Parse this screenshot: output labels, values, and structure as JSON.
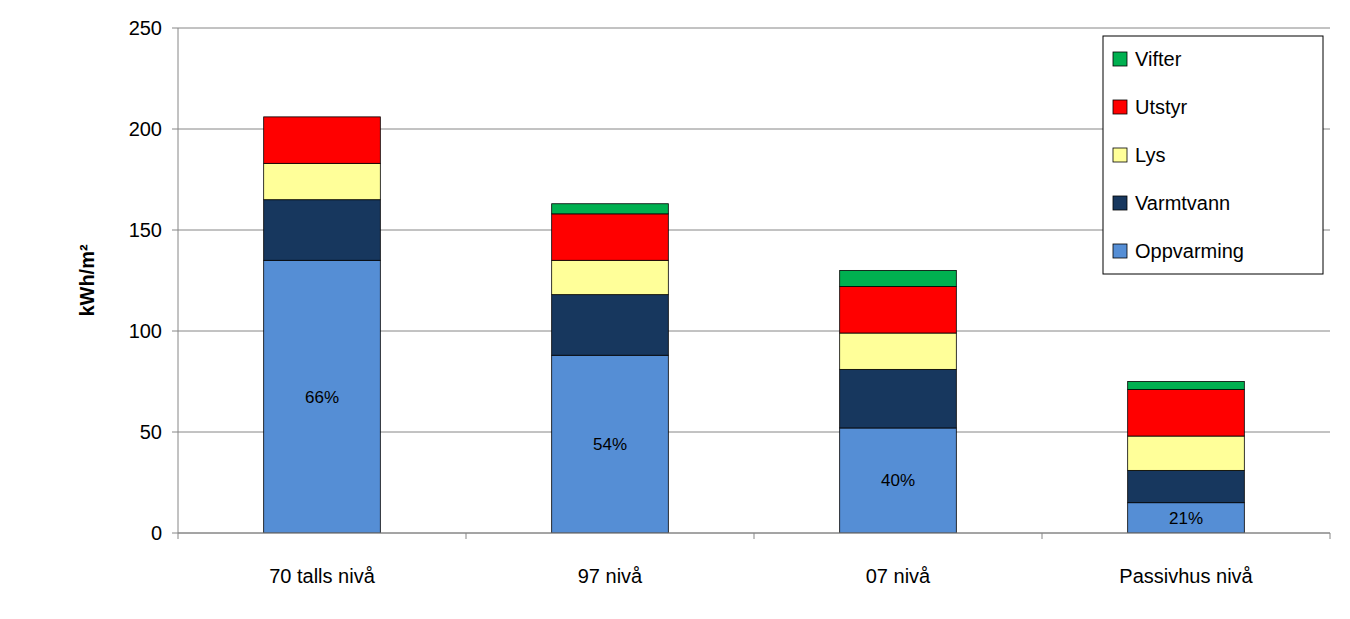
{
  "chart_data": {
    "type": "bar",
    "stacked": true,
    "grid": true,
    "legend": "upper right",
    "y_label": "kWh/m²",
    "categories": [
      "70 talls nivå",
      "97 nivå",
      "07 nivå",
      "Passivhus nivå"
    ],
    "ylim": [
      0,
      250
    ],
    "yticks": [
      0,
      50,
      100,
      150,
      200,
      250
    ],
    "series": [
      {
        "name": "Oppvarming",
        "color": "#558ed5",
        "values": [
          135,
          88,
          52,
          15
        ],
        "annotations": [
          "66%",
          "54%",
          "40%",
          "21%"
        ]
      },
      {
        "name": "Varmtvann",
        "color": "#17375e",
        "values": [
          30,
          30,
          29,
          16
        ]
      },
      {
        "name": "Lys",
        "color": "#ffff99",
        "values": [
          18,
          17,
          18,
          17
        ]
      },
      {
        "name": "Utstyr",
        "color": "#ff0000",
        "values": [
          23,
          23,
          23,
          23
        ]
      },
      {
        "name": "Vifter",
        "color": "#00b050",
        "values": [
          0,
          5,
          8,
          4
        ]
      }
    ]
  }
}
